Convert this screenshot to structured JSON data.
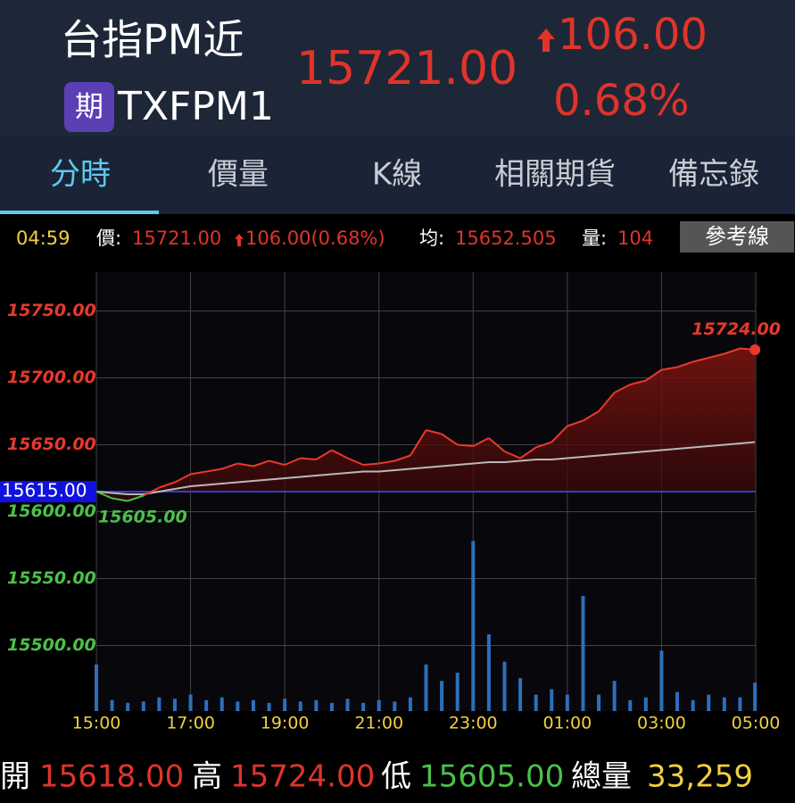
{
  "header": {
    "name": "台指PM近",
    "badge": "期",
    "code": "TXFPM1",
    "price": "15721.00",
    "change": "106.00",
    "change_pct": "0.68%"
  },
  "tabs": [
    "分時",
    "價量",
    "K線",
    "相關期貨",
    "備忘錄"
  ],
  "info": {
    "time": "04:59",
    "price_label": "價:",
    "price": "15721.00",
    "change": "106.00(0.68%)",
    "avg_label": "均:",
    "avg": "15652.505",
    "vol_label": "量:",
    "vol": "104",
    "ref_button": "參考線"
  },
  "chart_data": {
    "type": "line",
    "x": [
      0,
      20,
      40,
      60,
      80,
      100,
      120,
      140,
      160,
      180,
      200,
      220,
      240,
      260,
      280,
      300,
      320,
      340,
      360,
      380,
      400,
      420,
      440,
      460,
      480,
      500,
      520,
      540,
      560,
      580,
      600,
      620,
      640,
      660,
      680,
      700,
      720,
      740,
      760,
      780,
      800,
      820,
      839
    ],
    "series": [
      {
        "color": "#e8392c",
        "below_color": "#4cc04a",
        "values": [
          15615,
          15610,
          15608,
          15612,
          15618,
          15622,
          15628,
          15630,
          15632,
          15636,
          15634,
          15638,
          15635,
          15640,
          15639,
          15646,
          15640,
          15635,
          15636,
          15638,
          15642,
          15661,
          15658,
          15650,
          15649,
          15655,
          15645,
          15640,
          15648,
          15652,
          15664,
          15668,
          15675,
          15689,
          15695,
          15698,
          15706,
          15708,
          15712,
          15715,
          15718,
          15722,
          15721
        ]
      },
      {
        "color": "#b8b8b8",
        "values": [
          15615,
          15614,
          15613,
          15613,
          15615,
          15617,
          15619,
          15620,
          15621,
          15622,
          15623,
          15624,
          15625,
          15626,
          15627,
          15628,
          15629,
          15630,
          15630,
          15631,
          15632,
          15633,
          15634,
          15635,
          15636,
          15637,
          15637,
          15638,
          15639,
          15639,
          15640,
          15641,
          15642,
          15643,
          15644,
          15645,
          15646,
          15647,
          15648,
          15649,
          15650,
          15651,
          15652
        ]
      }
    ],
    "volume": {
      "color": "#2d6fba",
      "vlim": [
        0,
        1600
      ],
      "values": [
        170,
        40,
        30,
        35,
        50,
        45,
        60,
        40,
        50,
        35,
        40,
        30,
        45,
        35,
        40,
        30,
        45,
        30,
        40,
        35,
        50,
        170,
        110,
        140,
        620,
        280,
        180,
        120,
        60,
        80,
        60,
        420,
        60,
        110,
        40,
        50,
        220,
        70,
        40,
        60,
        50,
        50,
        104
      ]
    },
    "xlim": [
      0,
      840
    ],
    "xticks": [
      {
        "value": 0,
        "label": "15:00"
      },
      {
        "value": 120,
        "label": "17:00"
      },
      {
        "value": 240,
        "label": "19:00"
      },
      {
        "value": 360,
        "label": "21:00"
      },
      {
        "value": 480,
        "label": "23:00"
      },
      {
        "value": 600,
        "label": "01:00"
      },
      {
        "value": 720,
        "label": "03:00"
      },
      {
        "value": 840,
        "label": "05:00"
      }
    ],
    "ylim": [
      15451,
      15779
    ],
    "yticks": [
      {
        "value": 15500,
        "label": "15500.00"
      },
      {
        "value": 15550,
        "label": "15550.00"
      },
      {
        "value": 15600,
        "label": "15600.00"
      },
      {
        "value": 15650,
        "label": "15650.00"
      },
      {
        "value": 15700,
        "label": "15700.00"
      },
      {
        "value": 15750,
        "label": "15750.00"
      }
    ],
    "reference": {
      "value": 15615,
      "label": "15615.00",
      "color": "#3040d0"
    },
    "high": {
      "value": 15724,
      "label": "15724.00"
    },
    "low": {
      "value": 15605,
      "label": "15605.00"
    },
    "grid": true
  },
  "footer": {
    "open_label": "開",
    "open": "15618.00",
    "high_label": "高",
    "high": "15724.00",
    "low_label": "低",
    "low": "15605.00",
    "total_label": "總量",
    "total": "33,259"
  }
}
